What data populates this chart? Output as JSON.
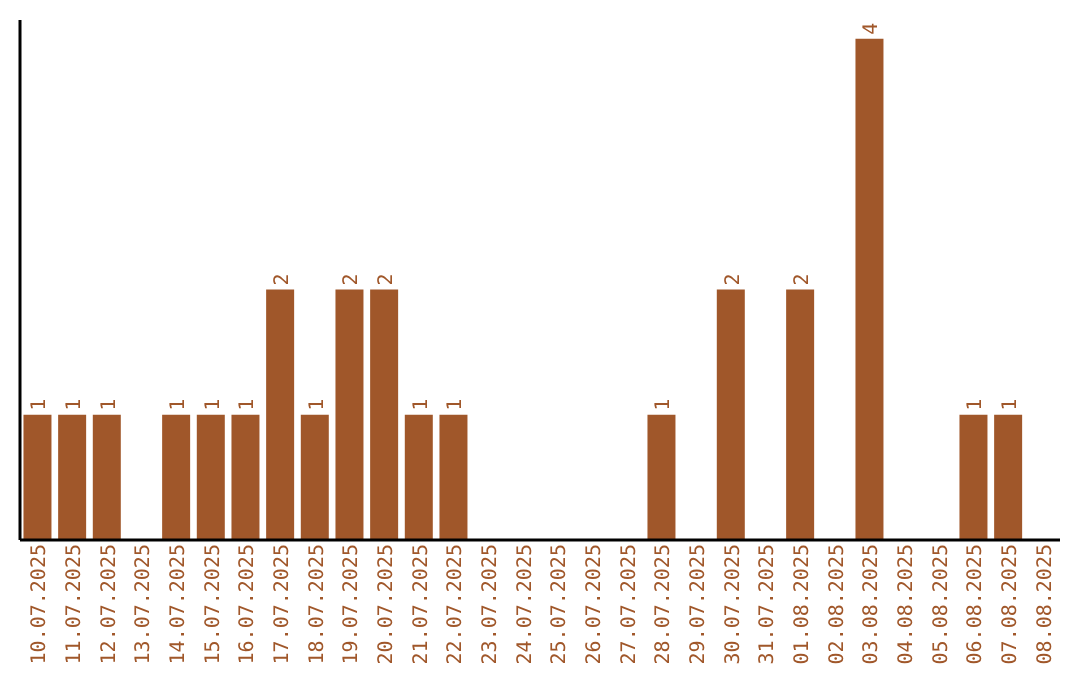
{
  "chart_data": {
    "type": "bar",
    "categories": [
      "10.07.2025",
      "11.07.2025",
      "12.07.2025",
      "13.07.2025",
      "14.07.2025",
      "15.07.2025",
      "16.07.2025",
      "17.07.2025",
      "18.07.2025",
      "19.07.2025",
      "20.07.2025",
      "21.07.2025",
      "22.07.2025",
      "23.07.2025",
      "24.07.2025",
      "25.07.2025",
      "26.07.2025",
      "27.07.2025",
      "28.07.2025",
      "29.07.2025",
      "30.07.2025",
      "31.07.2025",
      "01.08.2025",
      "02.08.2025",
      "03.08.2025",
      "04.08.2025",
      "05.08.2025",
      "06.08.2025",
      "07.08.2025",
      "08.08.2025"
    ],
    "values": [
      1,
      1,
      1,
      0,
      1,
      1,
      1,
      2,
      1,
      2,
      2,
      1,
      1,
      0,
      0,
      0,
      0,
      0,
      1,
      0,
      2,
      0,
      2,
      0,
      4,
      0,
      0,
      1,
      1,
      0
    ],
    "value_labels": [
      "1",
      "1",
      "1",
      null,
      "1",
      "1",
      "1",
      "2",
      "1",
      "2",
      "2",
      "1",
      "1",
      null,
      null,
      null,
      null,
      null,
      "1",
      null,
      "2",
      null,
      "2",
      null,
      "4",
      null,
      null,
      "1",
      "1",
      null
    ],
    "color": "#a0572a",
    "ylim": [
      0,
      4.15
    ],
    "grid": false,
    "legend": false
  }
}
